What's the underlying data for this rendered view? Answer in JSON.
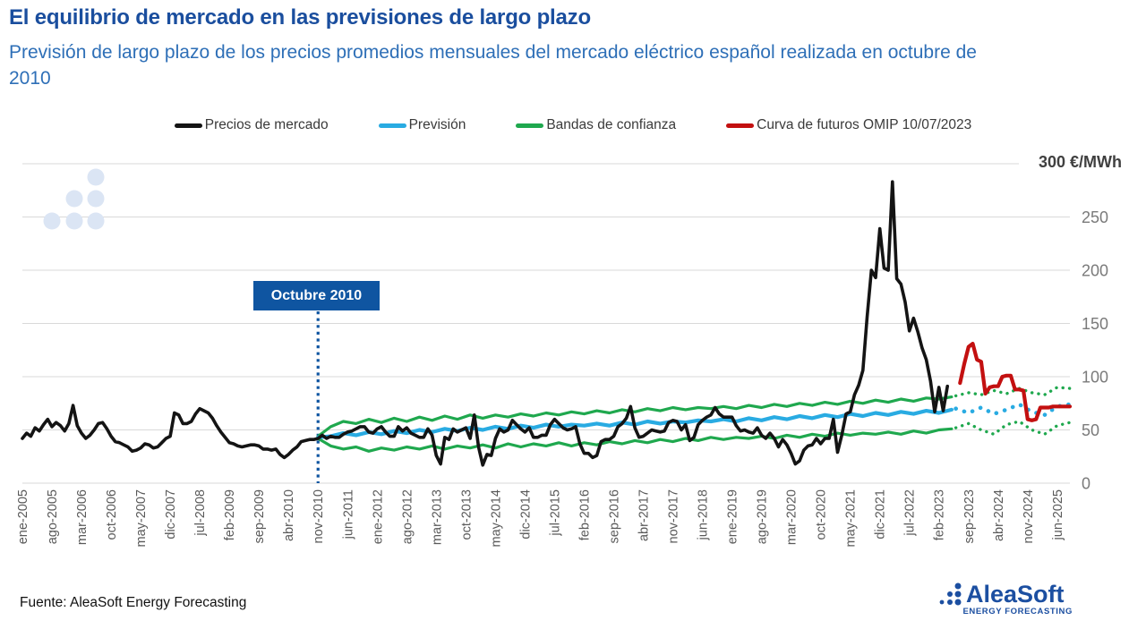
{
  "header": {
    "title": "El equilibrio de mercado en las previsiones de largo plazo",
    "subtitle": "Previsión de largo plazo de los precios promedios mensuales del mercado eléctrico español realizada en octubre de 2010"
  },
  "legend": {
    "items": [
      {
        "label": "Precios de mercado",
        "color": "#141414"
      },
      {
        "label": "Previsión",
        "color": "#29abe2"
      },
      {
        "label": "Bandas de confianza",
        "color": "#1fa84e"
      },
      {
        "label": "Curva de futuros OMIP 10/07/2023",
        "color": "#c31010"
      }
    ]
  },
  "footer": {
    "source": "Fuente: AleaSoft Energy Forecasting"
  },
  "logo": {
    "name": "AleaSoft",
    "tagline": "ENERGY FORECASTING",
    "color": "#1c4fa1"
  },
  "colors": {
    "title": "#1a4e9e",
    "subtitle": "#2e6fb7",
    "grid": "#d9d9d9",
    "axis_text": "#595959",
    "ytick_text": "#7a7a7a",
    "annotation": "#0f55a1",
    "watermark": "#dbe5f4"
  },
  "chart_data": {
    "type": "line",
    "title": "Previsión de largo plazo de los precios promedios mensuales del mercado eléctrico español realizada en octubre de 2010",
    "y_axis": {
      "min": 0,
      "max": 300,
      "tick_interval": 50,
      "unit_label": "300 €/MWh",
      "ticks_shown": [
        250,
        200,
        150,
        100,
        50,
        0
      ]
    },
    "x_axis": {
      "tick_step_months": 7,
      "months_total": 249,
      "tick_labels": [
        "ene-2005",
        "ago-2005",
        "mar-2006",
        "oct-2006",
        "may-2007",
        "dic-2007",
        "jul-2008",
        "feb-2009",
        "sep-2009",
        "abr-2010",
        "nov-2010",
        "jun-2011",
        "ene-2012",
        "ago-2012",
        "mar-2013",
        "oct-2013",
        "may-2014",
        "dic-2014",
        "jul-2015",
        "feb-2016",
        "sep-2016",
        "abr-2017",
        "nov-2017",
        "jun-2018",
        "ene-2019",
        "ago-2019",
        "mar-2020",
        "oct-2020",
        "may-2021",
        "dic-2021",
        "jul-2022",
        "feb-2023",
        "sep-2023",
        "abr-2024",
        "nov-2024",
        "jun-2025"
      ]
    },
    "annotation": {
      "label": "Octubre 2010",
      "month": 70
    },
    "series": [
      {
        "id": "band_upper",
        "name": "Bandas de confianza (superior)",
        "color": "#1fa84e",
        "style": "solid",
        "anchors": [
          [
            70,
            44
          ],
          [
            73,
            53
          ],
          [
            76,
            58
          ],
          [
            79,
            56
          ],
          [
            82,
            60
          ],
          [
            85,
            57
          ],
          [
            88,
            61
          ],
          [
            91,
            58
          ],
          [
            94,
            62
          ],
          [
            97,
            59
          ],
          [
            100,
            63
          ],
          [
            103,
            60
          ],
          [
            106,
            64
          ],
          [
            109,
            61
          ],
          [
            112,
            64
          ],
          [
            115,
            62
          ],
          [
            118,
            65
          ],
          [
            121,
            63
          ],
          [
            124,
            66
          ],
          [
            127,
            64
          ],
          [
            130,
            67
          ],
          [
            133,
            65
          ],
          [
            136,
            68
          ],
          [
            139,
            66
          ],
          [
            142,
            69
          ],
          [
            145,
            67
          ],
          [
            148,
            70
          ],
          [
            151,
            68
          ],
          [
            154,
            71
          ],
          [
            157,
            69
          ],
          [
            160,
            71
          ],
          [
            163,
            70
          ],
          [
            166,
            72
          ],
          [
            169,
            70
          ],
          [
            172,
            73
          ],
          [
            175,
            71
          ],
          [
            178,
            74
          ],
          [
            181,
            72
          ],
          [
            184,
            75
          ],
          [
            187,
            73
          ],
          [
            190,
            76
          ],
          [
            193,
            74
          ],
          [
            196,
            77
          ],
          [
            199,
            75
          ],
          [
            202,
            78
          ],
          [
            205,
            76
          ],
          [
            208,
            79
          ],
          [
            211,
            77
          ],
          [
            214,
            80
          ],
          [
            217,
            79
          ],
          [
            220,
            81
          ]
        ]
      },
      {
        "id": "band_lower",
        "name": "Bandas de confianza (inferior)",
        "color": "#1fa84e",
        "style": "solid",
        "anchors": [
          [
            70,
            42
          ],
          [
            73,
            35
          ],
          [
            76,
            32
          ],
          [
            79,
            34
          ],
          [
            82,
            30
          ],
          [
            85,
            33
          ],
          [
            88,
            31
          ],
          [
            91,
            34
          ],
          [
            94,
            32
          ],
          [
            97,
            35
          ],
          [
            100,
            32
          ],
          [
            103,
            35
          ],
          [
            106,
            33
          ],
          [
            109,
            36
          ],
          [
            112,
            33
          ],
          [
            115,
            37
          ],
          [
            118,
            34
          ],
          [
            121,
            37
          ],
          [
            124,
            35
          ],
          [
            127,
            38
          ],
          [
            130,
            35
          ],
          [
            133,
            38
          ],
          [
            136,
            36
          ],
          [
            139,
            39
          ],
          [
            142,
            37
          ],
          [
            145,
            40
          ],
          [
            148,
            38
          ],
          [
            151,
            41
          ],
          [
            154,
            39
          ],
          [
            157,
            42
          ],
          [
            160,
            40
          ],
          [
            163,
            43
          ],
          [
            166,
            41
          ],
          [
            169,
            43
          ],
          [
            172,
            42
          ],
          [
            175,
            44
          ],
          [
            178,
            42
          ],
          [
            181,
            45
          ],
          [
            184,
            43
          ],
          [
            187,
            46
          ],
          [
            190,
            44
          ],
          [
            193,
            47
          ],
          [
            196,
            45
          ],
          [
            199,
            47
          ],
          [
            202,
            46
          ],
          [
            205,
            48
          ],
          [
            208,
            46
          ],
          [
            211,
            49
          ],
          [
            214,
            47
          ],
          [
            217,
            50
          ],
          [
            220,
            51
          ]
        ]
      },
      {
        "id": "band_upper_dotted",
        "name": "Bandas de confianza (superior, previsión futura)",
        "color": "#1fa84e",
        "style": "dotted",
        "anchors": [
          [
            221,
            82
          ],
          [
            224,
            85
          ],
          [
            227,
            83
          ],
          [
            230,
            87
          ],
          [
            233,
            84
          ],
          [
            236,
            89
          ],
          [
            239,
            85
          ],
          [
            242,
            83
          ],
          [
            245,
            90
          ],
          [
            248,
            89
          ]
        ]
      },
      {
        "id": "band_lower_dotted",
        "name": "Bandas de confianza (inferior, previsión futura)",
        "color": "#1fa84e",
        "style": "dotted",
        "anchors": [
          [
            221,
            52
          ],
          [
            224,
            56
          ],
          [
            227,
            50
          ],
          [
            230,
            46
          ],
          [
            233,
            55
          ],
          [
            236,
            58
          ],
          [
            239,
            50
          ],
          [
            242,
            46
          ],
          [
            245,
            54
          ],
          [
            248,
            57
          ]
        ]
      },
      {
        "id": "forecast",
        "name": "Previsión",
        "color": "#29abe2",
        "style": "solid",
        "anchors": [
          [
            70,
            43
          ],
          [
            73,
            44
          ],
          [
            76,
            47
          ],
          [
            79,
            45
          ],
          [
            82,
            48
          ],
          [
            85,
            46
          ],
          [
            88,
            49
          ],
          [
            91,
            47
          ],
          [
            94,
            50
          ],
          [
            97,
            48
          ],
          [
            100,
            51
          ],
          [
            103,
            49
          ],
          [
            106,
            52
          ],
          [
            109,
            50
          ],
          [
            112,
            53
          ],
          [
            115,
            51
          ],
          [
            118,
            54
          ],
          [
            121,
            52
          ],
          [
            124,
            55
          ],
          [
            127,
            53
          ],
          [
            130,
            55
          ],
          [
            133,
            54
          ],
          [
            136,
            56
          ],
          [
            139,
            54
          ],
          [
            142,
            57
          ],
          [
            145,
            55
          ],
          [
            148,
            58
          ],
          [
            151,
            56
          ],
          [
            154,
            58
          ],
          [
            157,
            57
          ],
          [
            160,
            59
          ],
          [
            163,
            58
          ],
          [
            166,
            60
          ],
          [
            169,
            58
          ],
          [
            172,
            61
          ],
          [
            175,
            59
          ],
          [
            178,
            62
          ],
          [
            181,
            60
          ],
          [
            184,
            63
          ],
          [
            187,
            61
          ],
          [
            190,
            64
          ],
          [
            193,
            62
          ],
          [
            196,
            65
          ],
          [
            199,
            63
          ],
          [
            202,
            66
          ],
          [
            205,
            64
          ],
          [
            208,
            67
          ],
          [
            211,
            65
          ],
          [
            214,
            68
          ],
          [
            217,
            66
          ],
          [
            220,
            69
          ]
        ]
      },
      {
        "id": "forecast_dotted",
        "name": "Previsión (tramo futuro)",
        "color": "#29abe2",
        "style": "dotted",
        "anchors": [
          [
            221,
            70
          ],
          [
            224,
            66
          ],
          [
            227,
            71
          ],
          [
            230,
            65
          ],
          [
            233,
            69
          ],
          [
            236,
            74
          ],
          [
            239,
            67
          ],
          [
            242,
            64
          ],
          [
            245,
            72
          ],
          [
            248,
            74
          ]
        ]
      },
      {
        "id": "market",
        "name": "Precios de mercado",
        "color": "#141414",
        "style": "solid",
        "start_month": 0,
        "values": [
          42,
          47,
          44,
          52,
          49,
          55,
          60,
          53,
          57,
          54,
          49,
          56,
          73,
          54,
          47,
          42,
          45,
          50,
          56,
          57,
          51,
          44,
          39,
          38,
          36,
          34,
          30,
          31,
          33,
          37,
          36,
          33,
          34,
          38,
          42,
          44,
          66,
          64,
          56,
          56,
          58,
          65,
          70,
          68,
          66,
          61,
          54,
          48,
          43,
          38,
          37,
          35,
          34,
          35,
          36,
          36,
          35,
          32,
          32,
          31,
          32,
          27,
          24,
          27,
          31,
          34,
          39,
          40,
          41,
          41,
          42,
          45,
          42,
          44,
          43,
          43,
          46,
          48,
          49,
          51,
          53,
          53,
          48,
          47,
          51,
          53,
          48,
          44,
          44,
          53,
          49,
          52,
          47,
          45,
          43,
          43,
          51,
          45,
          26,
          18,
          43,
          41,
          51,
          48,
          50,
          52,
          42,
          64,
          34,
          17,
          27,
          26,
          42,
          51,
          48,
          50,
          59,
          55,
          51,
          48,
          52,
          43,
          43,
          45,
          45,
          55,
          60,
          56,
          52,
          50,
          51,
          53,
          37,
          28,
          28,
          24,
          26,
          39,
          41,
          41,
          44,
          53,
          56,
          61,
          72,
          52,
          43,
          44,
          47,
          50,
          49,
          48,
          49,
          57,
          59,
          58,
          50,
          55,
          40,
          43,
          55,
          59,
          62,
          64,
          71,
          65,
          62,
          62,
          62,
          54,
          49,
          50,
          48,
          47,
          52,
          45,
          42,
          47,
          42,
          34,
          41,
          36,
          28,
          18,
          21,
          31,
          35,
          36,
          42,
          37,
          42,
          42,
          60,
          29,
          45,
          65,
          67,
          83,
          92,
          106,
          156,
          200,
          193,
          239,
          202,
          200,
          283,
          192,
          187,
          170,
          143,
          155,
          142,
          127,
          116,
          96,
          67,
          90,
          68,
          91
        ]
      },
      {
        "id": "futures",
        "name": "Curva de futuros OMIP 10/07/2023",
        "color": "#c31010",
        "style": "solid",
        "start_month": 222,
        "values": [
          94,
          112,
          128,
          131,
          116,
          114,
          84,
          90,
          91,
          91,
          100,
          101,
          101,
          88,
          88,
          87,
          60,
          59,
          60,
          71,
          71,
          71,
          72,
          72,
          72,
          72,
          72
        ]
      }
    ]
  }
}
